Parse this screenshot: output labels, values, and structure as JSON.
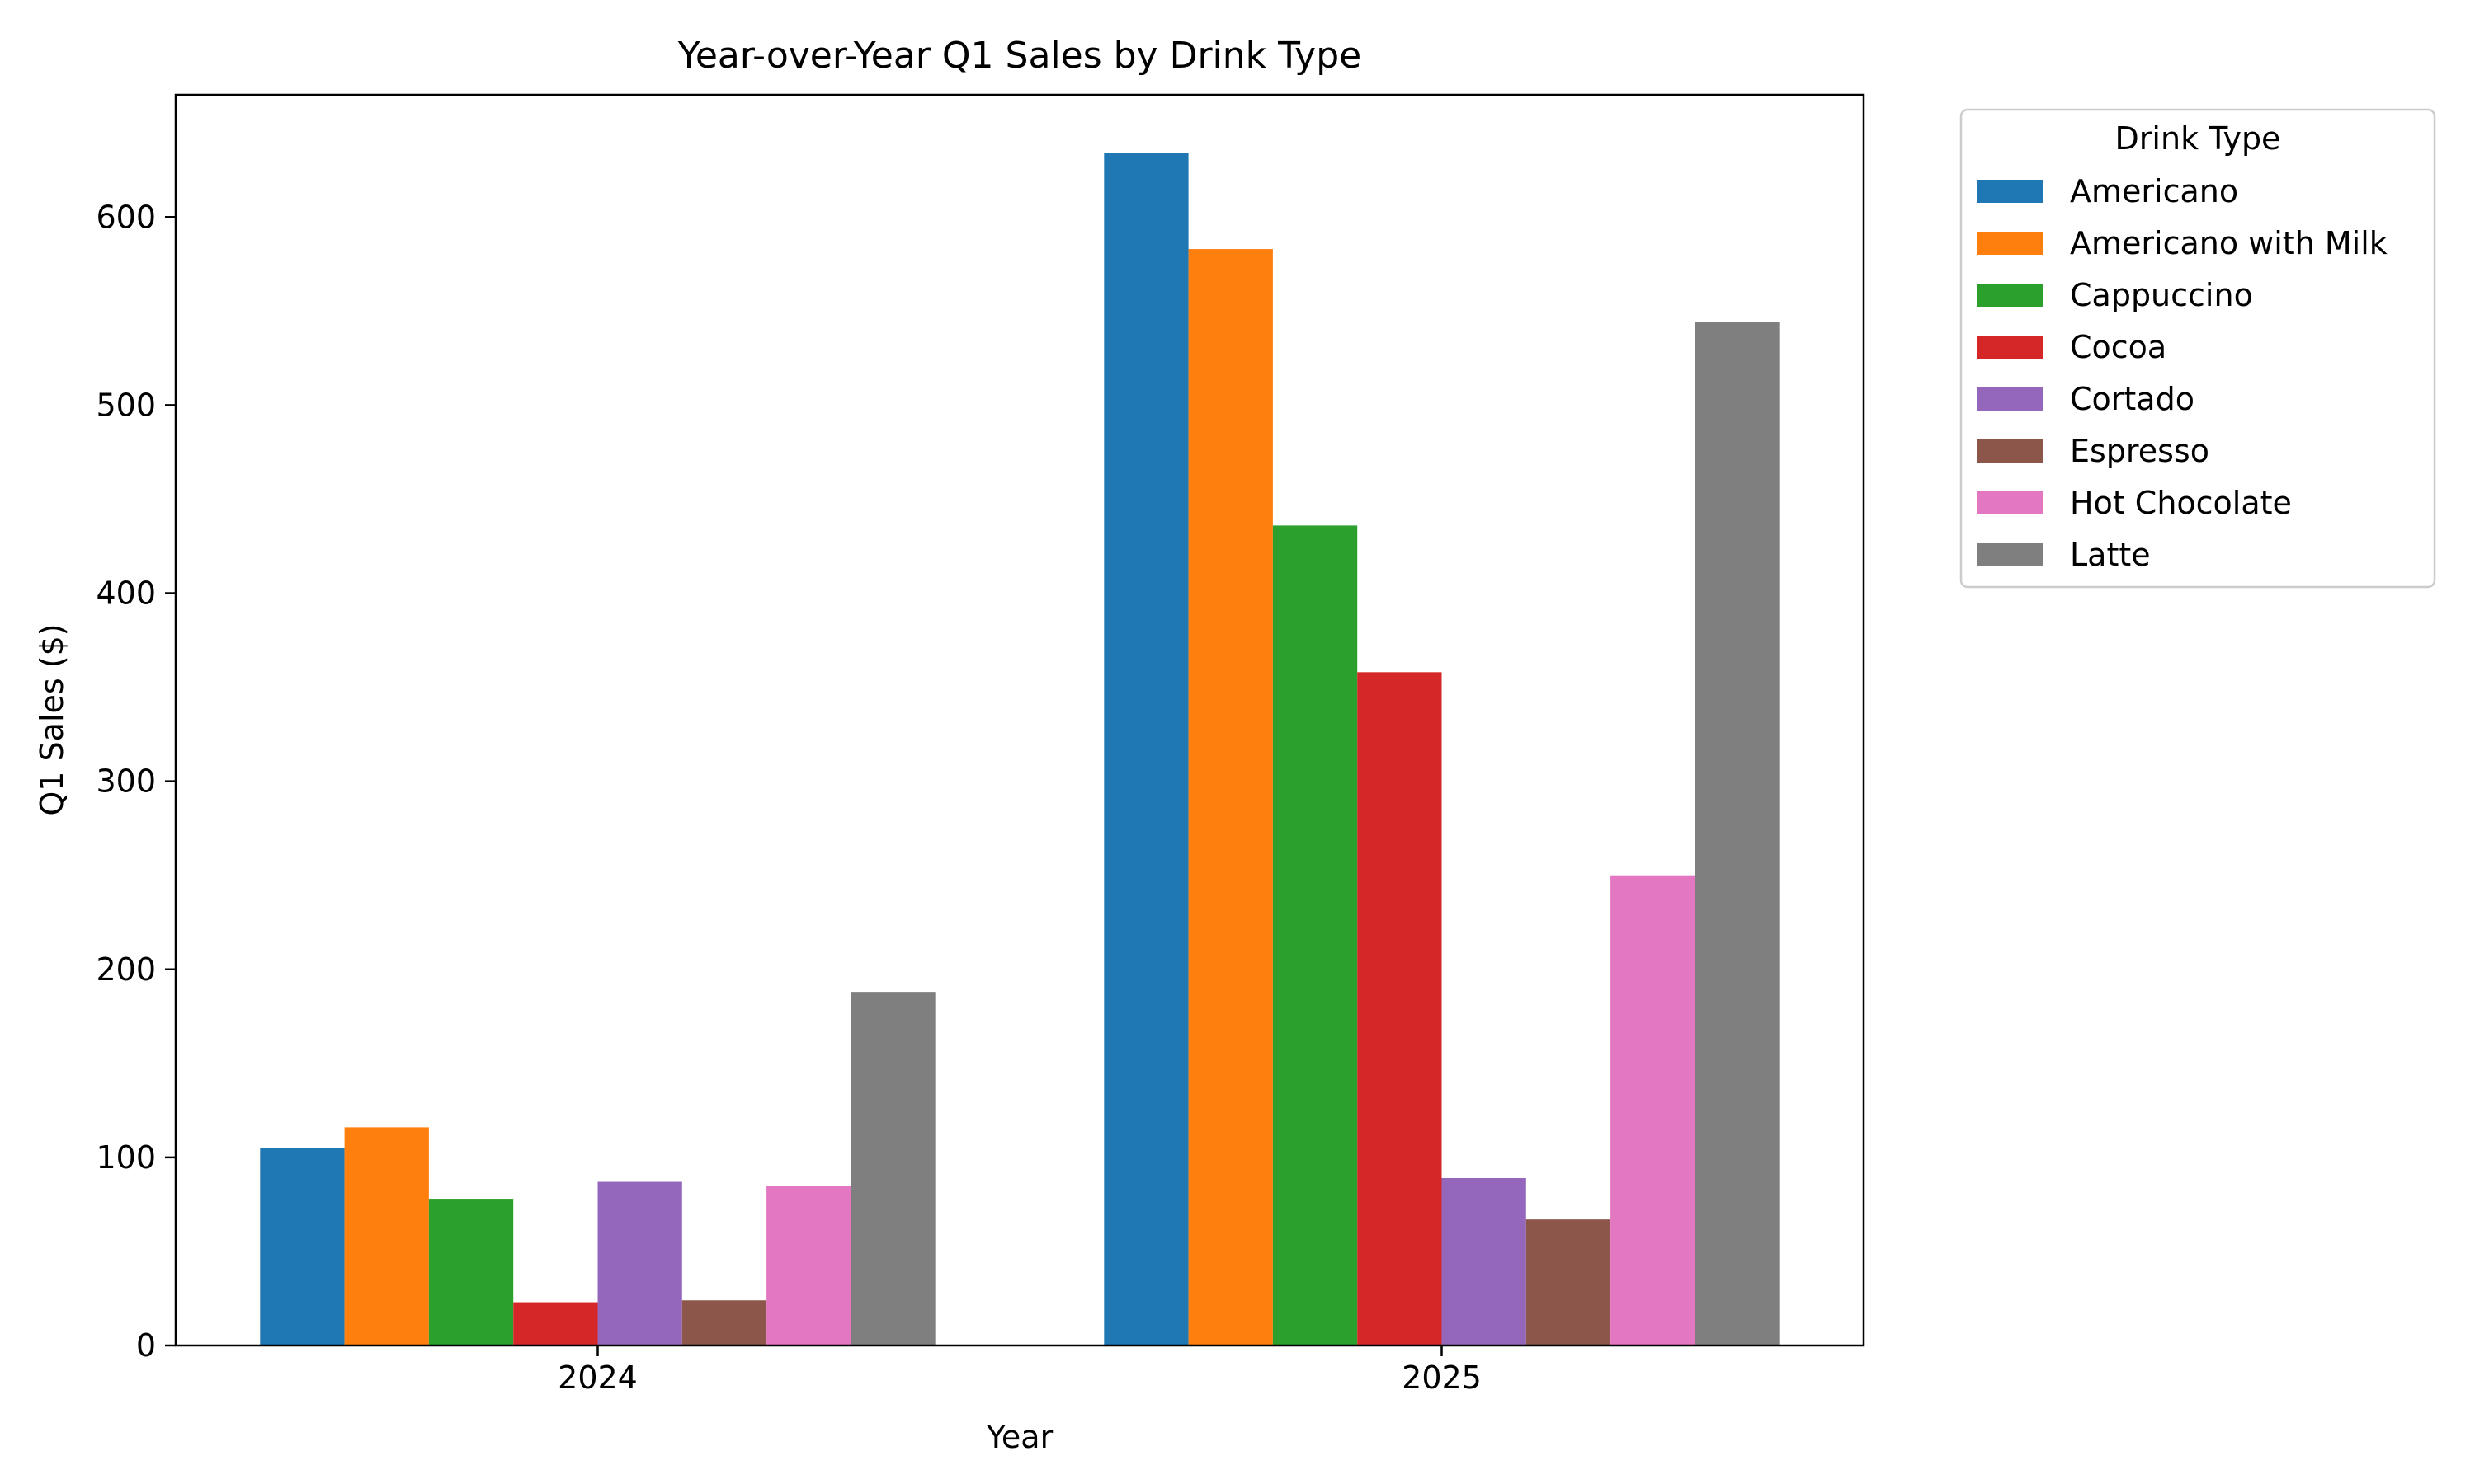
{
  "chart_data": {
    "type": "bar",
    "title": "Year-over-Year Q1 Sales by Drink Type",
    "xlabel": "Year",
    "ylabel": "Q1 Sales ($)",
    "categories": [
      "2024",
      "2025"
    ],
    "ylim": [
      0,
      665
    ],
    "yticks": [
      0,
      100,
      200,
      300,
      400,
      500,
      600
    ],
    "grid": false,
    "legend": {
      "title": "Drink Type",
      "placement": "outside-top-right"
    },
    "series": [
      {
        "name": "Americano",
        "color": "#1f77b4",
        "values": [
          105,
          634
        ]
      },
      {
        "name": "Americano with Milk",
        "color": "#ff7f0e",
        "values": [
          116,
          583
        ]
      },
      {
        "name": "Cappuccino",
        "color": "#2ca02c",
        "values": [
          78,
          436
        ]
      },
      {
        "name": "Cocoa",
        "color": "#d62728",
        "values": [
          23,
          358
        ]
      },
      {
        "name": "Cortado",
        "color": "#9467bd",
        "values": [
          87,
          89
        ]
      },
      {
        "name": "Espresso",
        "color": "#8c564b",
        "values": [
          24,
          67
        ]
      },
      {
        "name": "Hot Chocolate",
        "color": "#e377c2",
        "values": [
          85,
          250
        ]
      },
      {
        "name": "Latte",
        "color": "#7f7f7f",
        "values": [
          188,
          544
        ]
      }
    ]
  }
}
